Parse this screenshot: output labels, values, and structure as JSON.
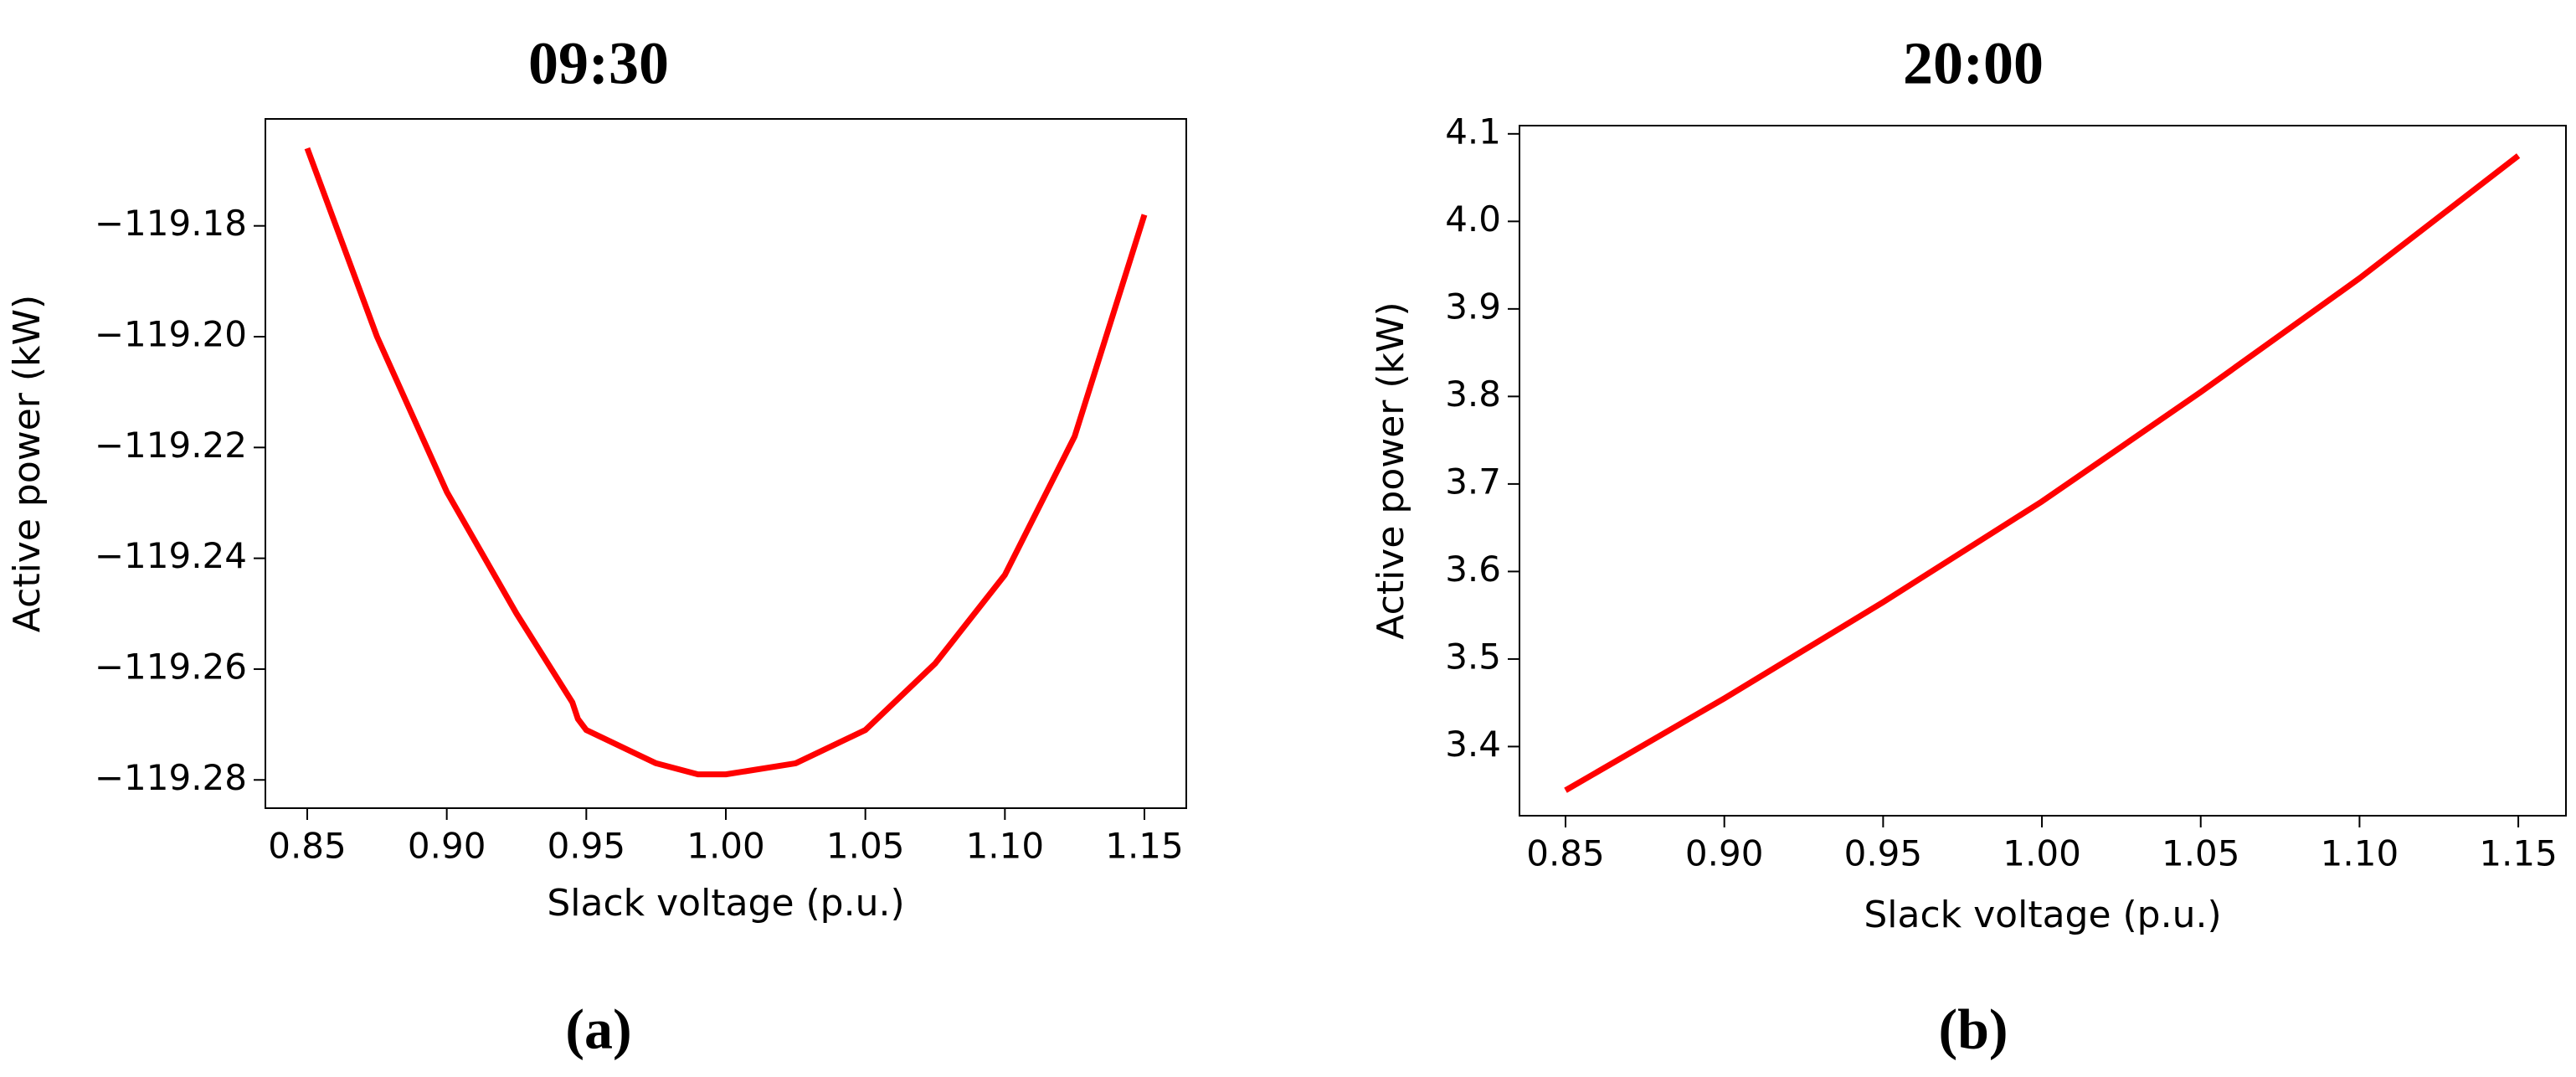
{
  "chart_data": [
    {
      "type": "line",
      "title": "09:30",
      "caption": "(a)",
      "x_label": "Slack voltage (p.u.)",
      "y_label": "Active power (kW)",
      "x": [
        0.85,
        0.875,
        0.9,
        0.925,
        0.945,
        0.947,
        0.95,
        0.975,
        0.99,
        1.0,
        1.025,
        1.05,
        1.075,
        1.1,
        1.125,
        1.15
      ],
      "values": [
        -119.166,
        -119.2,
        -119.228,
        -119.25,
        -119.266,
        -119.269,
        -119.271,
        -119.277,
        -119.279,
        -119.279,
        -119.277,
        -119.271,
        -119.259,
        -119.243,
        -119.218,
        -119.178
      ],
      "color": "#ff0000",
      "xlim": [
        0.835,
        1.165
      ],
      "xticks": [
        0.85,
        {
          "value": 0.9,
          "label": "0.90"
        },
        0.95,
        {
          "value": 1.0,
          "label": "1.00"
        },
        1.05,
        {
          "value": 1.1,
          "label": "1.10"
        },
        1.15
      ],
      "ylim": [
        -119.2851,
        -119.1607
      ],
      "yticks": [
        {
          "value": -119.18,
          "label": "−119.18"
        },
        {
          "value": -119.2,
          "label": "−119.20"
        },
        {
          "value": -119.22,
          "label": "−119.22"
        },
        {
          "value": -119.24,
          "label": "−119.24"
        },
        {
          "value": -119.26,
          "label": "−119.26"
        },
        {
          "value": -119.28,
          "label": "−119.28"
        }
      ],
      "grid": false
    },
    {
      "type": "line",
      "title": "20:00",
      "caption": "(b)",
      "x_label": "Slack voltage (p.u.)",
      "y_label": "Active power (kW)",
      "x": [
        0.85,
        0.9,
        0.95,
        1.0,
        1.05,
        1.1,
        1.15
      ],
      "values": [
        3.35,
        3.455,
        3.565,
        3.68,
        3.805,
        3.935,
        4.075
      ],
      "color": "#ff0000",
      "xlim": [
        0.8355,
        1.165
      ],
      "xticks": [
        0.85,
        {
          "value": 0.9,
          "label": "0.90"
        },
        0.95,
        {
          "value": 1.0,
          "label": "1.00"
        },
        1.05,
        {
          "value": 1.1,
          "label": "1.10"
        },
        1.15
      ],
      "ylim": [
        3.321,
        4.1094
      ],
      "yticks": [
        3.4,
        3.5,
        3.6,
        3.7,
        3.8,
        3.9,
        {
          "value": 4.0,
          "label": "4.0"
        },
        4.1
      ],
      "grid": false
    }
  ]
}
